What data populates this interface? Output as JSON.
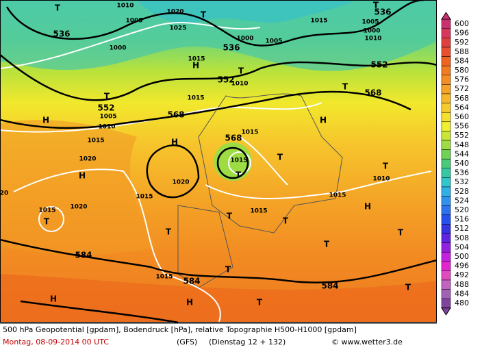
{
  "map": {
    "labels": [
      "T",
      "T",
      "T",
      "536",
      "536",
      "536",
      "552",
      "552",
      "552",
      "568",
      "568",
      "568",
      "584",
      "584",
      "584",
      "H",
      "H",
      "H",
      "H",
      "H",
      "H",
      "H",
      "H",
      "T",
      "T",
      "T",
      "T",
      "T",
      "T",
      "T",
      "T",
      "T",
      "T",
      "T",
      "T",
      "T",
      "T",
      "T",
      "1015",
      "1005",
      "1010",
      "1020",
      "1025",
      "1000",
      "1000",
      "1005",
      "1000",
      "1010",
      "1005",
      "1015",
      "1015",
      "1010",
      "1015",
      "1020",
      "1020",
      "1015",
      "1015",
      "1020",
      "1015",
      "1015",
      "1015",
      "1015",
      "1010",
      "1015",
      "1005",
      "1010",
      "20"
    ]
  },
  "colorbar": {
    "labels": [
      "600",
      "596",
      "592",
      "588",
      "584",
      "580",
      "576",
      "572",
      "568",
      "564",
      "560",
      "556",
      "552",
      "548",
      "544",
      "540",
      "536",
      "532",
      "528",
      "524",
      "520",
      "516",
      "512",
      "508",
      "504",
      "500",
      "496",
      "492",
      "488",
      "484",
      "480"
    ],
    "colors": [
      "#c8306e",
      "#d8385a",
      "#e04040",
      "#e85030",
      "#ee6420",
      "#f27a20",
      "#f48e22",
      "#f5a226",
      "#f6b82a",
      "#f6cc2c",
      "#f5e02c",
      "#eef030",
      "#c8e634",
      "#9edc44",
      "#70d256",
      "#48ca78",
      "#34c8a4",
      "#30c6cc",
      "#30b0e4",
      "#3092ec",
      "#2e72f0",
      "#2850ee",
      "#3434e0",
      "#6024e0",
      "#9420e0",
      "#c420e0",
      "#e424d0",
      "#e04cc0",
      "#c064c0",
      "#a062b4",
      "#80449e"
    ]
  },
  "footer": {
    "line1": "500 hPa Geopotential [gpdam], Bodendruck [hPa], relative Topographie H500-H1000 [gpdam]",
    "date": "Montag, 08-09-2014  00 UTC",
    "model": "(GFS)",
    "run": "(Dienstag 12 + 132)",
    "credit": "© www.wetter3.de"
  }
}
